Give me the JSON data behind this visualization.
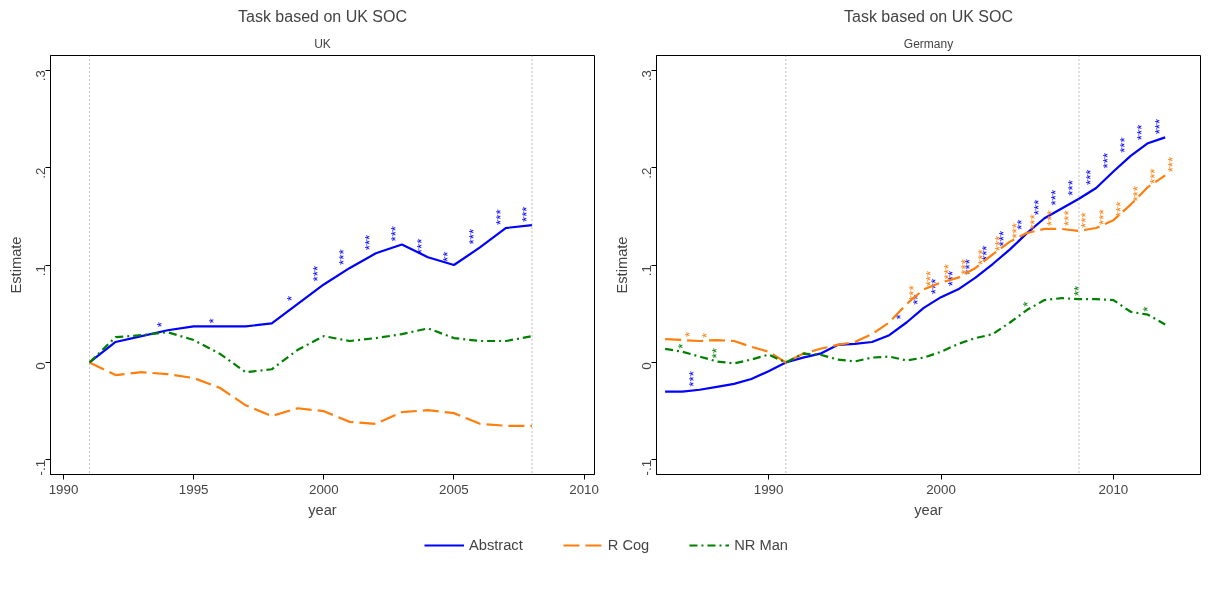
{
  "chart_data": [
    {
      "type": "line",
      "title": "Task based on UK SOC",
      "subtitle": "UK",
      "xlabel": "year",
      "ylabel": "Estimate",
      "x": [
        1991,
        1992,
        1993,
        1994,
        1995,
        1996,
        1997,
        1998,
        1999,
        2000,
        2001,
        2002,
        2003,
        2004,
        2005,
        2006,
        2007,
        2008
      ],
      "xlim": [
        1989.5,
        2010.4
      ],
      "ylim": [
        -0.115,
        0.315
      ],
      "xticks": [
        1990,
        1995,
        2000,
        2005,
        2010
      ],
      "yticks": [
        {
          "value": -0.1,
          "label": "-.1"
        },
        {
          "value": 0,
          "label": "0"
        },
        {
          "value": 0.1,
          "label": ".1"
        },
        {
          "value": 0.2,
          "label": ".2"
        },
        {
          "value": 0.3,
          "label": ".3"
        }
      ],
      "grid": false,
      "legend": "bottom",
      "marker": "none",
      "ref_lines": [
        {
          "axis": "x",
          "value": 1991,
          "color": "#808080",
          "line_style": "dotted"
        },
        {
          "axis": "x",
          "value": 2008,
          "color": "#808080",
          "line_style": "dotted"
        }
      ],
      "series": [
        {
          "name": "Abstract",
          "color": "#0000ff",
          "line_style": "solid",
          "values": [
            0,
            0.021,
            0.027,
            0.033,
            0.037,
            0.037,
            0.037,
            0.04,
            0.06,
            0.08,
            0.097,
            0.112,
            0.121,
            0.108,
            0.1,
            0.118,
            0.138,
            0.141
          ],
          "value_labels": [
            null,
            null,
            null,
            "*",
            null,
            "*",
            null,
            null,
            "*",
            "***",
            "***",
            "***",
            "***",
            "***",
            "**",
            "***",
            "***",
            "***"
          ]
        },
        {
          "name": "R Cog",
          "color": "#ff7f0e",
          "line_style": "dashed",
          "values": [
            0,
            -0.013,
            -0.01,
            -0.012,
            -0.016,
            -0.026,
            -0.044,
            -0.055,
            -0.047,
            -0.05,
            -0.061,
            -0.063,
            -0.051,
            -0.049,
            -0.052,
            -0.063,
            -0.065,
            -0.065
          ]
        },
        {
          "name": "NR Man",
          "color": "#008000",
          "line_style": "dotted",
          "values": [
            0,
            0.026,
            0.028,
            0.031,
            0.023,
            0.009,
            -0.01,
            -0.007,
            0.013,
            0.027,
            0.022,
            0.025,
            0.029,
            0.035,
            0.025,
            0.022,
            0.022,
            0.027
          ]
        }
      ]
    },
    {
      "type": "line",
      "title": "Task based on UK SOC",
      "subtitle": "Germany",
      "xlabel": "year",
      "ylabel": "Estimate",
      "x": [
        1984,
        1985,
        1986,
        1987,
        1988,
        1989,
        1990,
        1991,
        1992,
        1993,
        1994,
        1995,
        1996,
        1997,
        1998,
        1999,
        2000,
        2001,
        2002,
        2003,
        2004,
        2005,
        2006,
        2007,
        2008,
        2009,
        2010,
        2011,
        2012,
        2013
      ],
      "xlim": [
        1983.5,
        2015.05
      ],
      "ylim": [
        -0.115,
        0.315
      ],
      "xticks": [
        1990,
        2000,
        2010
      ],
      "yticks": [
        {
          "value": -0.1,
          "label": "-.1"
        },
        {
          "value": 0,
          "label": "0"
        },
        {
          "value": 0.1,
          "label": ".1"
        },
        {
          "value": 0.2,
          "label": ".2"
        },
        {
          "value": 0.3,
          "label": ".3"
        }
      ],
      "grid": false,
      "legend": "bottom",
      "marker": "none",
      "ref_lines": [
        {
          "axis": "x",
          "value": 1991,
          "color": "#808080",
          "line_style": "dotted"
        },
        {
          "axis": "x",
          "value": 2008,
          "color": "#808080",
          "line_style": "dotted"
        }
      ],
      "series": [
        {
          "name": "Abstract",
          "color": "#0000ff",
          "line_style": "solid",
          "values": [
            -0.03,
            -0.03,
            -0.028,
            -0.025,
            -0.022,
            -0.017,
            -0.009,
            0,
            0.005,
            0.009,
            0.018,
            0.019,
            0.021,
            0.028,
            0.041,
            0.056,
            0.067,
            0.075,
            0.087,
            0.101,
            0.116,
            0.133,
            0.148,
            0.158,
            0.168,
            0.179,
            0.196,
            0.212,
            0.225,
            0.231
          ],
          "value_labels": [
            null,
            null,
            "***",
            null,
            null,
            null,
            null,
            null,
            null,
            null,
            null,
            null,
            null,
            null,
            "*",
            "**",
            "***",
            "***",
            "***",
            "***",
            "***",
            "**",
            "***",
            "***",
            "***",
            "***",
            "***",
            "***",
            "***",
            "***"
          ]
        },
        {
          "name": "R Cog",
          "color": "#ff7f0e",
          "line_style": "dashed",
          "values": [
            0.024,
            0.023,
            0.022,
            0.023,
            0.022,
            0.016,
            0.011,
            0,
            0.009,
            0.014,
            0.018,
            0.021,
            0.029,
            0.041,
            0.06,
            0.075,
            0.082,
            0.087,
            0.097,
            0.111,
            0.124,
            0.133,
            0.137,
            0.137,
            0.135,
            0.138,
            0.146,
            0.162,
            0.18,
            0.192
          ],
          "value_labels": [
            null,
            "*",
            "*",
            null,
            null,
            null,
            null,
            null,
            null,
            null,
            null,
            null,
            null,
            null,
            "***",
            "***",
            "***",
            "***",
            "***",
            "***",
            "***",
            "***",
            "***",
            "***",
            "***",
            "***",
            "***",
            "***",
            "***",
            "***"
          ]
        },
        {
          "name": "NR Man",
          "color": "#008000",
          "line_style": "dotted",
          "values": [
            0.014,
            0.011,
            0.006,
            0.001,
            -0.001,
            0.003,
            0.008,
            0,
            0.009,
            0.008,
            0.003,
            0.001,
            0.005,
            0.006,
            0.002,
            0.005,
            0.011,
            0.019,
            0.025,
            0.029,
            0.041,
            0.054,
            0.064,
            0.066,
            0.065,
            0.065,
            0.064,
            0.052,
            0.049,
            0.039
          ],
          "value_labels": [
            null,
            "*",
            null,
            "**",
            null,
            null,
            null,
            null,
            null,
            null,
            null,
            null,
            null,
            null,
            null,
            null,
            null,
            null,
            null,
            null,
            null,
            "*",
            null,
            null,
            "**",
            null,
            null,
            null,
            "*",
            null
          ]
        }
      ]
    }
  ]
}
